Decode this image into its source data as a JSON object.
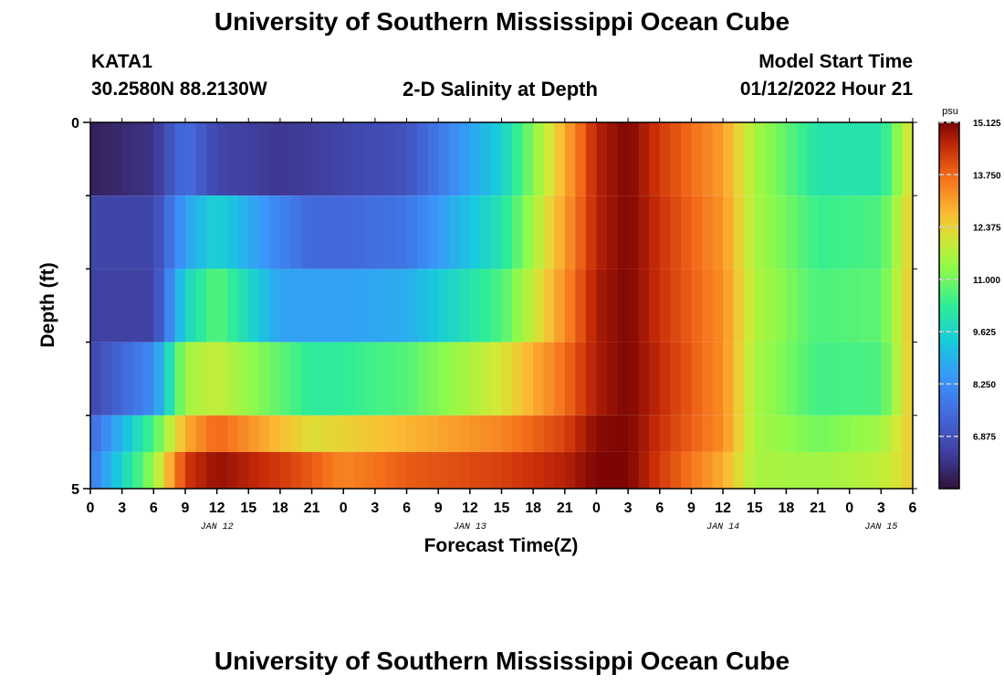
{
  "page": {
    "title": "University of Southern Mississippi Ocean Cube",
    "footer_title": "University of Southern Mississippi Ocean Cube",
    "station_id": "KATA1",
    "station_coords": "30.2580N  88.2130W",
    "subtitle": "2-D Salinity at Depth",
    "model_start_label": "Model Start Time",
    "model_start_value": "01/12/2022 Hour 21"
  },
  "chart_data": {
    "type": "heatmap",
    "title": "2-D Salinity at Depth",
    "xlabel": "Forecast Time(Z)",
    "ylabel": "Depth (ft)",
    "ylim": [
      0,
      5
    ],
    "y_tick_labels": [
      "0",
      "5"
    ],
    "x_tick_labels": [
      "0",
      "3",
      "6",
      "9",
      "12",
      "15",
      "18",
      "21",
      "0",
      "3",
      "6",
      "9",
      "12",
      "15",
      "18",
      "21",
      "0",
      "3",
      "6",
      "9",
      "12",
      "15",
      "18",
      "21",
      "0",
      "3",
      "6"
    ],
    "date_labels": [
      {
        "text": "JAN 12",
        "tick_index": 4
      },
      {
        "text": "JAN 13",
        "tick_index": 12
      },
      {
        "text": "JAN 14",
        "tick_index": 20
      },
      {
        "text": "JAN 15",
        "tick_index": 25
      }
    ],
    "colorbar": {
      "unit": "psu",
      "min": 5.5,
      "max": 15.125,
      "tick_labels": [
        "15.125",
        "13.750",
        "12.375",
        "11.000",
        "9.625",
        "8.250",
        "6.875"
      ],
      "tick_values": [
        15.125,
        13.75,
        12.375,
        11.0,
        9.625,
        8.25,
        6.875
      ]
    },
    "x_hours": [
      0,
      6,
      9,
      12,
      18,
      21,
      24,
      30,
      39,
      45,
      48,
      51,
      54,
      60,
      63,
      69,
      75,
      78
    ],
    "depth_rows": [
      {
        "depth": 0,
        "values": [
          5.8,
          6.2,
          7.6,
          6.6,
          6.3,
          6.4,
          6.6,
          6.9,
          9.5,
          12.9,
          14.6,
          15.1,
          14.3,
          13.1,
          11.6,
          10.0,
          10.0,
          12.4
        ]
      },
      {
        "depth": 1,
        "values": [
          6.6,
          6.6,
          8.6,
          9.6,
          8.0,
          7.4,
          7.4,
          7.7,
          10.0,
          13.1,
          14.6,
          15.1,
          14.4,
          13.2,
          11.6,
          10.4,
          10.6,
          12.6
        ]
      },
      {
        "depth": 2,
        "values": [
          6.5,
          6.5,
          9.6,
          10.8,
          8.6,
          8.6,
          8.6,
          8.8,
          10.6,
          13.3,
          14.7,
          15.1,
          14.4,
          13.3,
          11.7,
          10.6,
          10.8,
          12.7
        ]
      },
      {
        "depth": 3,
        "values": [
          6.6,
          8.2,
          11.5,
          11.9,
          10.8,
          10.2,
          10.3,
          10.7,
          12.1,
          13.7,
          14.7,
          15.1,
          14.5,
          13.3,
          11.6,
          10.5,
          10.6,
          12.7
        ]
      },
      {
        "depth": 4,
        "values": [
          7.4,
          10.6,
          12.9,
          13.8,
          12.7,
          12.2,
          12.4,
          12.8,
          13.4,
          14.2,
          15.0,
          15.1,
          14.4,
          13.3,
          11.6,
          11.0,
          11.5,
          12.6
        ]
      },
      {
        "depth": 4.5,
        "values": [
          7.8,
          11.4,
          14.3,
          14.9,
          14.3,
          13.9,
          13.4,
          13.9,
          14.2,
          14.6,
          15.1,
          15.1,
          14.3,
          12.9,
          11.6,
          11.5,
          11.8,
          12.5
        ]
      }
    ]
  }
}
